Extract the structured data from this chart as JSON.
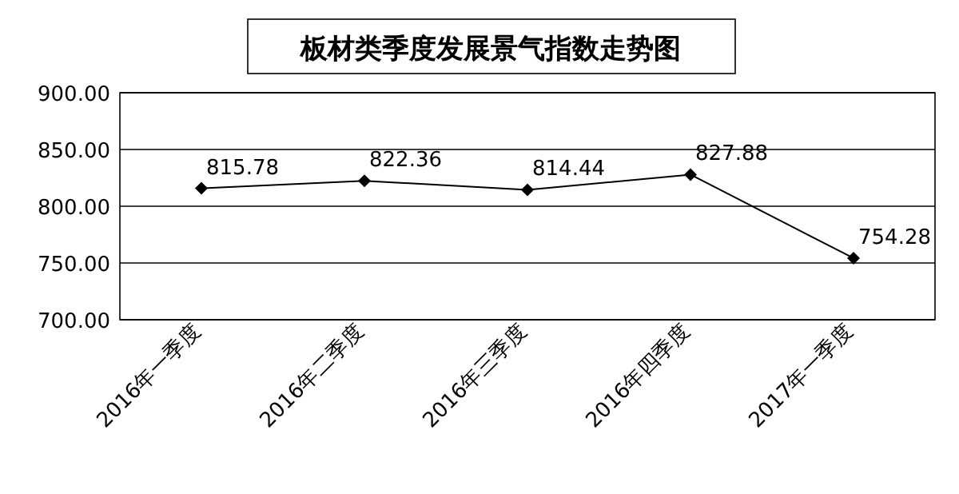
{
  "chart_data": {
    "type": "line",
    "title": "板材类季度发展景气指数走势图",
    "categories": [
      "2016年一季度",
      "2016年二季度",
      "2016年三季度",
      "2016年四季度",
      "2017年一季度"
    ],
    "series": [
      {
        "color": "#000000",
        "values": [
          815.78,
          822.36,
          814.44,
          827.88,
          754.28
        ]
      }
    ],
    "ylim": [
      700,
      900
    ],
    "yticks": [
      {
        "value": 700,
        "label": "700.00"
      },
      {
        "value": 750,
        "label": "750.00"
      },
      {
        "value": 800,
        "label": "800.00"
      },
      {
        "value": 850,
        "label": "850.00"
      },
      {
        "value": 900,
        "label": "900.00"
      }
    ],
    "grid": "y",
    "marker": "diamond",
    "line_style": "solid",
    "data_labels": true
  }
}
